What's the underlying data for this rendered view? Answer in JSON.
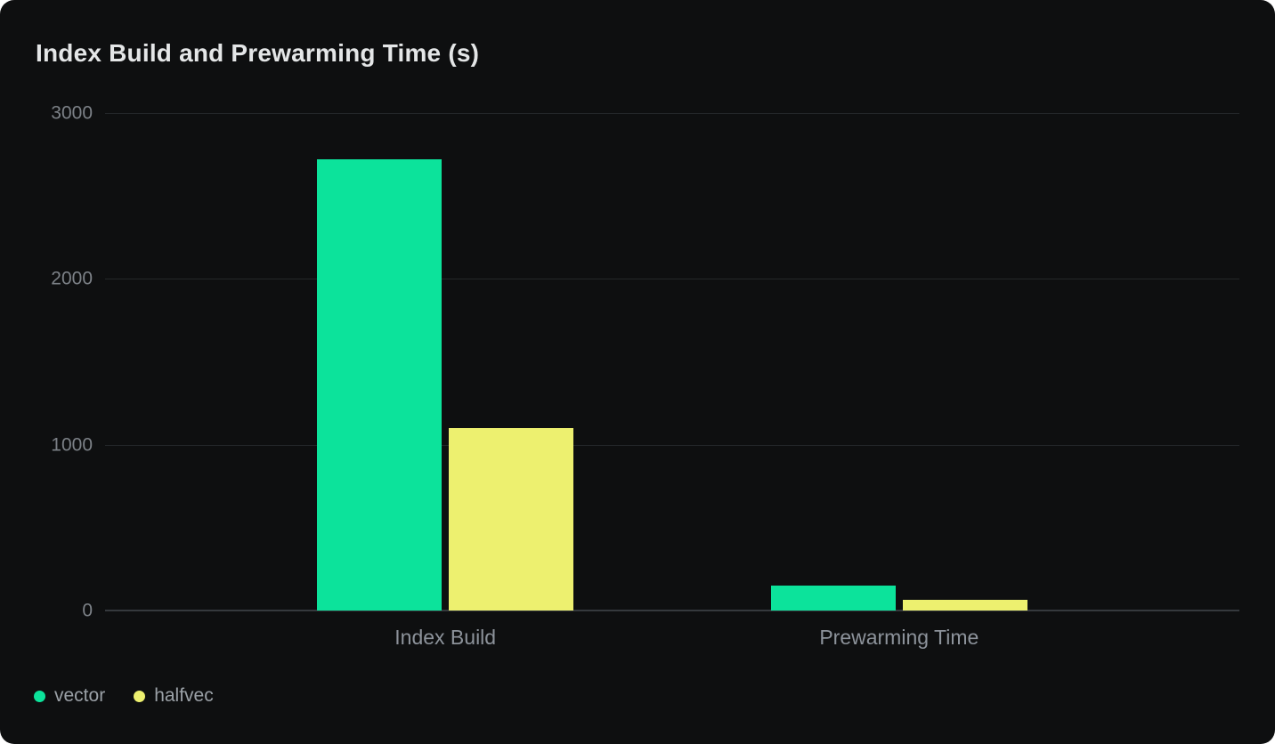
{
  "card": {
    "background": "#0e0f10"
  },
  "chart_data": {
    "type": "bar",
    "title": "Index Build and Prewarming Time (s)",
    "categories": [
      "Index Build",
      "Prewarming Time"
    ],
    "series": [
      {
        "name": "vector",
        "color": "#0CE39B",
        "values": [
          2720,
          150
        ]
      },
      {
        "name": "halfvec",
        "color": "#EDF06F",
        "values": [
          1100,
          65
        ]
      }
    ],
    "xlabel": "",
    "ylabel": "",
    "ylim": [
      0,
      3000
    ],
    "yticks": [
      0,
      1000,
      2000,
      3000
    ],
    "grid": true,
    "legend_position": "bottom-left",
    "colors": {
      "grid_line": "#24272a",
      "baseline": "#35393d",
      "axis_label": "#7c8187",
      "category_label": "#8d939b",
      "legend_text": "#9aa0a6",
      "title_text": "#e4e6e7"
    }
  }
}
